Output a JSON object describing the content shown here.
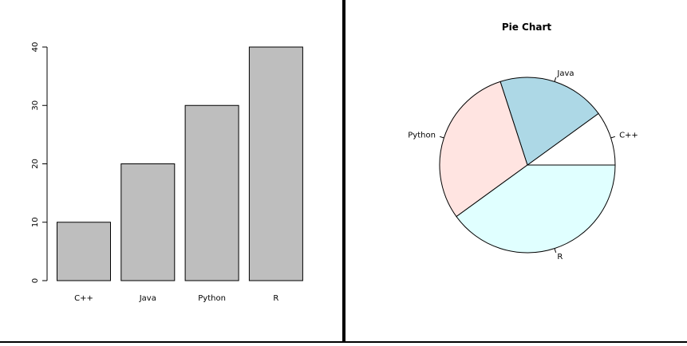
{
  "colors": {
    "divider": "#000000",
    "bar_fill": "#bebebe",
    "stroke": "#000000"
  },
  "chart_data": [
    {
      "type": "bar",
      "categories": [
        "C++",
        "Java",
        "Python",
        "R"
      ],
      "values": [
        10,
        20,
        30,
        40
      ],
      "ylim": [
        0,
        40
      ],
      "yticks": [
        0,
        10,
        20,
        30,
        40
      ],
      "xlabel": "",
      "ylabel": "",
      "grid": false
    },
    {
      "type": "pie",
      "title": "Pie Chart",
      "labels": [
        "C++",
        "Java",
        "Python",
        "R"
      ],
      "values": [
        10,
        20,
        30,
        40
      ],
      "colors": [
        "#ffffff",
        "#add8e6",
        "#ffe4e1",
        "#e0ffff"
      ],
      "legend": "none"
    }
  ]
}
